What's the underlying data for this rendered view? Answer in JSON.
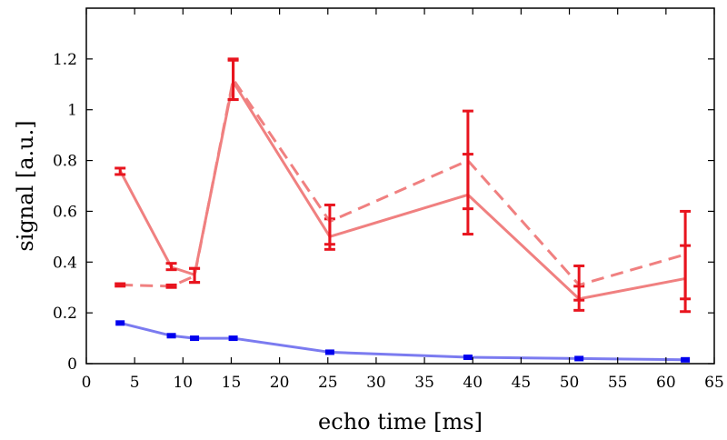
{
  "chart_data": {
    "type": "line",
    "title": "",
    "xlabel": "echo time [ms]",
    "ylabel": "signal [a.u.]",
    "xlim": [
      0,
      65
    ],
    "ylim": [
      0,
      1.4
    ],
    "xticks": [
      0,
      5,
      10,
      15,
      20,
      25,
      30,
      35,
      40,
      45,
      50,
      55,
      60,
      65
    ],
    "yticks": [
      0,
      0.2,
      0.4,
      0.6,
      0.8,
      1,
      1.2
    ],
    "xtick_labels": [
      "0",
      "5",
      "10",
      "15",
      "20",
      "25",
      "30",
      "35",
      "40",
      "45",
      "50",
      "55",
      "60",
      "65"
    ],
    "ytick_labels": [
      "0",
      "0.2",
      "0.4",
      "0.6",
      "0.8",
      "1",
      "1.2"
    ],
    "grid": false,
    "legend": "none",
    "series": [
      {
        "style": "solid",
        "color": "#f08080",
        "error_color": "#e8141e",
        "x": [
          3.5,
          8.8,
          11.2,
          15.2,
          25.2,
          39.5,
          51.0,
          62.0
        ],
        "y": [
          0.76,
          0.38,
          0.35,
          1.11,
          0.5,
          0.665,
          0.255,
          0.335
        ],
        "err_low": [
          0.745,
          0.37,
          0.32,
          1.04,
          0.45,
          0.51,
          0.21,
          0.205
        ],
        "err_high": [
          0.77,
          0.395,
          0.375,
          1.195,
          0.57,
          0.825,
          0.305,
          0.465
        ]
      },
      {
        "style": "dashed",
        "color": "#f08080",
        "error_color": "#e8141e",
        "x": [
          3.5,
          8.8,
          11.2,
          15.2,
          25.2,
          39.5,
          51.0,
          62.0
        ],
        "y": [
          0.31,
          0.305,
          0.345,
          1.12,
          0.56,
          0.8,
          0.31,
          0.43
        ],
        "err_low": [
          0.305,
          0.3,
          0.32,
          1.04,
          0.47,
          0.61,
          0.25,
          0.255
        ],
        "err_high": [
          0.315,
          0.31,
          0.375,
          1.2,
          0.625,
          0.995,
          0.385,
          0.6
        ]
      },
      {
        "style": "solid",
        "color": "#7b7bf0",
        "marker_color": "#0000ee",
        "x": [
          3.5,
          8.8,
          11.2,
          15.2,
          25.2,
          39.5,
          51.0,
          62.0
        ],
        "y": [
          0.16,
          0.11,
          0.1,
          0.1,
          0.045,
          0.025,
          0.02,
          0.015
        ]
      }
    ]
  }
}
